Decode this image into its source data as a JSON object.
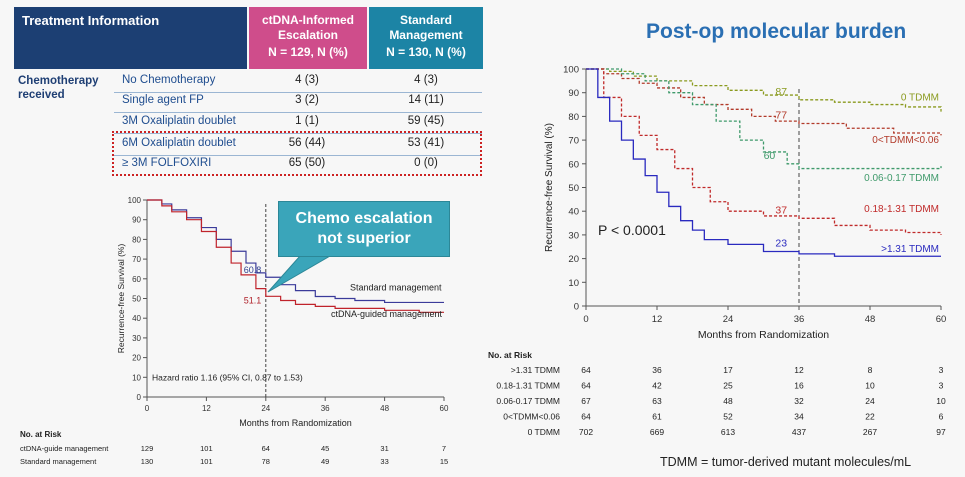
{
  "table": {
    "header_info": "Treatment Information",
    "header_ctdna_line1": "ctDNA-Informed",
    "header_ctdna_line2": "Escalation",
    "header_ctdna_n": "N = 129, N (%)",
    "header_std_line1": "Standard",
    "header_std_line2": "Management",
    "header_std_n": "N = 130, N (%)",
    "group_label_line1": "Chemotherapy",
    "group_label_line2": "received",
    "rows": [
      {
        "label": "No Chemotherapy",
        "ctdna": "4 (3)",
        "std": "4 (3)"
      },
      {
        "label": "Single agent FP",
        "ctdna": "3 (2)",
        "std": "14 (11)"
      },
      {
        "label": "3M Oxaliplatin doublet",
        "ctdna": "1 (1)",
        "std": "59 (45)"
      },
      {
        "label": "6M Oxaliplatin doublet",
        "ctdna": "56 (44)",
        "std": "53 (41)"
      },
      {
        "label": "≥ 3M FOLFOXIRI",
        "ctdna": "65 (50)",
        "std": "0 (0)"
      }
    ]
  },
  "callout": {
    "line1": "Chemo escalation",
    "line2": "not superior"
  },
  "right_title": "Post-op molecular burden",
  "footnote": "TDMM = tumor-derived mutant molecules/mL",
  "chart_data": [
    {
      "type": "line",
      "subtype": "kaplan-meier",
      "title": "",
      "xlabel": "Months from Randomization",
      "ylabel": "Recurrence-free Survival (%)",
      "xlim": [
        0,
        60
      ],
      "ylim": [
        0,
        100
      ],
      "xticks": [
        0,
        12,
        24,
        36,
        48,
        60
      ],
      "yticks": [
        0,
        10,
        20,
        30,
        40,
        50,
        60,
        70,
        80,
        90,
        100
      ],
      "reference_x": 24,
      "colors": {
        "ctDNA-guided management": "#c0232b",
        "Standard management": "#3b3b9a",
        "marks": "#555555"
      },
      "series": [
        {
          "name": "Standard management",
          "x": [
            0,
            3,
            5,
            8,
            11,
            14,
            17,
            20,
            22,
            24,
            27,
            30,
            34,
            38,
            42,
            48,
            55,
            60
          ],
          "values": [
            100,
            98,
            95,
            91,
            86,
            80,
            74,
            68,
            63,
            60.8,
            57,
            54,
            51,
            50,
            49,
            48,
            48,
            48
          ]
        },
        {
          "name": "ctDNA-guided management",
          "x": [
            0,
            3,
            5,
            8,
            11,
            14,
            17,
            19,
            22,
            24,
            27,
            30,
            34,
            38,
            42,
            48,
            55,
            60
          ],
          "values": [
            100,
            97,
            94,
            90,
            84,
            76,
            68,
            62,
            55,
            51.1,
            49,
            47,
            46,
            45,
            45,
            44,
            43,
            43
          ]
        }
      ],
      "annotations": [
        {
          "text": "60.8",
          "x": 24,
          "y": 60.8
        },
        {
          "text": "51.1",
          "x": 24,
          "y": 51.1
        },
        {
          "text": "Standard management"
        },
        {
          "text": "ctDNA-guided management"
        },
        {
          "text": "Hazard ratio 1.16 (95% CI, 0.87 to 1.53)"
        }
      ],
      "risk_table": {
        "title": "No. at Risk",
        "rows": [
          {
            "label": "ctDNA-guide management",
            "values": [
              129,
              101,
              64,
              45,
              31,
              7
            ]
          },
          {
            "label": "Standard management",
            "values": [
              130,
              101,
              78,
              49,
              33,
              15
            ]
          }
        ]
      }
    },
    {
      "type": "line",
      "subtype": "kaplan-meier",
      "title": "Post-op molecular burden",
      "xlabel": "Months from Randomization",
      "ylabel": "Recurrence-free Survival (%)",
      "xlim": [
        0,
        60
      ],
      "ylim": [
        0,
        100
      ],
      "xticks": [
        0,
        12,
        24,
        36,
        48,
        60
      ],
      "yticks": [
        0,
        10,
        20,
        30,
        40,
        50,
        60,
        70,
        80,
        90,
        100
      ],
      "reference_x": 36,
      "pvalue": "P < 0.0001",
      "series": [
        {
          "name": "0 TDMM",
          "color": "#8a9a1e",
          "x": [
            0,
            4,
            8,
            12,
            18,
            24,
            30,
            36,
            42,
            48,
            54,
            60
          ],
          "values": [
            100,
            99,
            97,
            95,
            93,
            91,
            89,
            87,
            86,
            85,
            84,
            82
          ]
        },
        {
          "name": "0<TDMM<0.06",
          "color": "#b23a2a",
          "x": [
            0,
            3,
            6,
            9,
            12,
            16,
            20,
            24,
            28,
            32,
            36,
            44,
            52,
            60
          ],
          "values": [
            100,
            98,
            96,
            94,
            92,
            88,
            85,
            83,
            80,
            78,
            77,
            75,
            73,
            72
          ]
        },
        {
          "name": "0.06-0.17 TDMM",
          "color": "#3f9a6b",
          "x": [
            0,
            6,
            10,
            14,
            18,
            22,
            26,
            30,
            34,
            36,
            44,
            52,
            60
          ],
          "values": [
            100,
            98,
            95,
            90,
            85,
            78,
            70,
            65,
            60,
            58,
            58,
            58,
            59
          ]
        },
        {
          "name": "0.18-1.31 TDMM",
          "color": "#c02a2a",
          "x": [
            0,
            3,
            6,
            9,
            12,
            15,
            18,
            21,
            24,
            30,
            36,
            42,
            48,
            54,
            60
          ],
          "values": [
            100,
            88,
            80,
            72,
            66,
            58,
            50,
            44,
            40,
            38,
            37,
            34,
            32,
            31,
            30
          ]
        },
        {
          "name": ">1.31 TDMM",
          "color": "#2a2abf",
          "x": [
            0,
            2,
            4,
            6,
            8,
            10,
            12,
            14,
            16,
            18,
            20,
            24,
            30,
            36,
            42,
            48,
            54,
            60
          ],
          "values": [
            100,
            88,
            78,
            70,
            62,
            55,
            48,
            42,
            36,
            32,
            28,
            26,
            23,
            22,
            21,
            21,
            21,
            21
          ]
        }
      ],
      "annotations": [
        {
          "text": "87",
          "x": 33,
          "y": 87
        },
        {
          "text": "77",
          "x": 33,
          "y": 77
        },
        {
          "text": "60",
          "x": 31,
          "y": 60
        },
        {
          "text": "37",
          "x": 33,
          "y": 37
        },
        {
          "text": "23",
          "x": 33,
          "y": 23
        }
      ],
      "risk_table": {
        "title": "No. at Risk",
        "rows": [
          {
            "label": ">1.31 TDMM",
            "values": [
              64,
              36,
              17,
              12,
              8,
              3
            ]
          },
          {
            "label": "0.18-1.31 TDMM",
            "values": [
              64,
              42,
              25,
              16,
              10,
              3
            ]
          },
          {
            "label": "0.06-0.17 TDMM",
            "values": [
              67,
              63,
              48,
              32,
              24,
              10
            ]
          },
          {
            "label": "0<TDMM<0.06",
            "values": [
              64,
              61,
              52,
              34,
              22,
              6
            ]
          },
          {
            "label": "0 TDMM",
            "values": [
              702,
              669,
              613,
              437,
              267,
              97
            ]
          }
        ]
      }
    }
  ]
}
